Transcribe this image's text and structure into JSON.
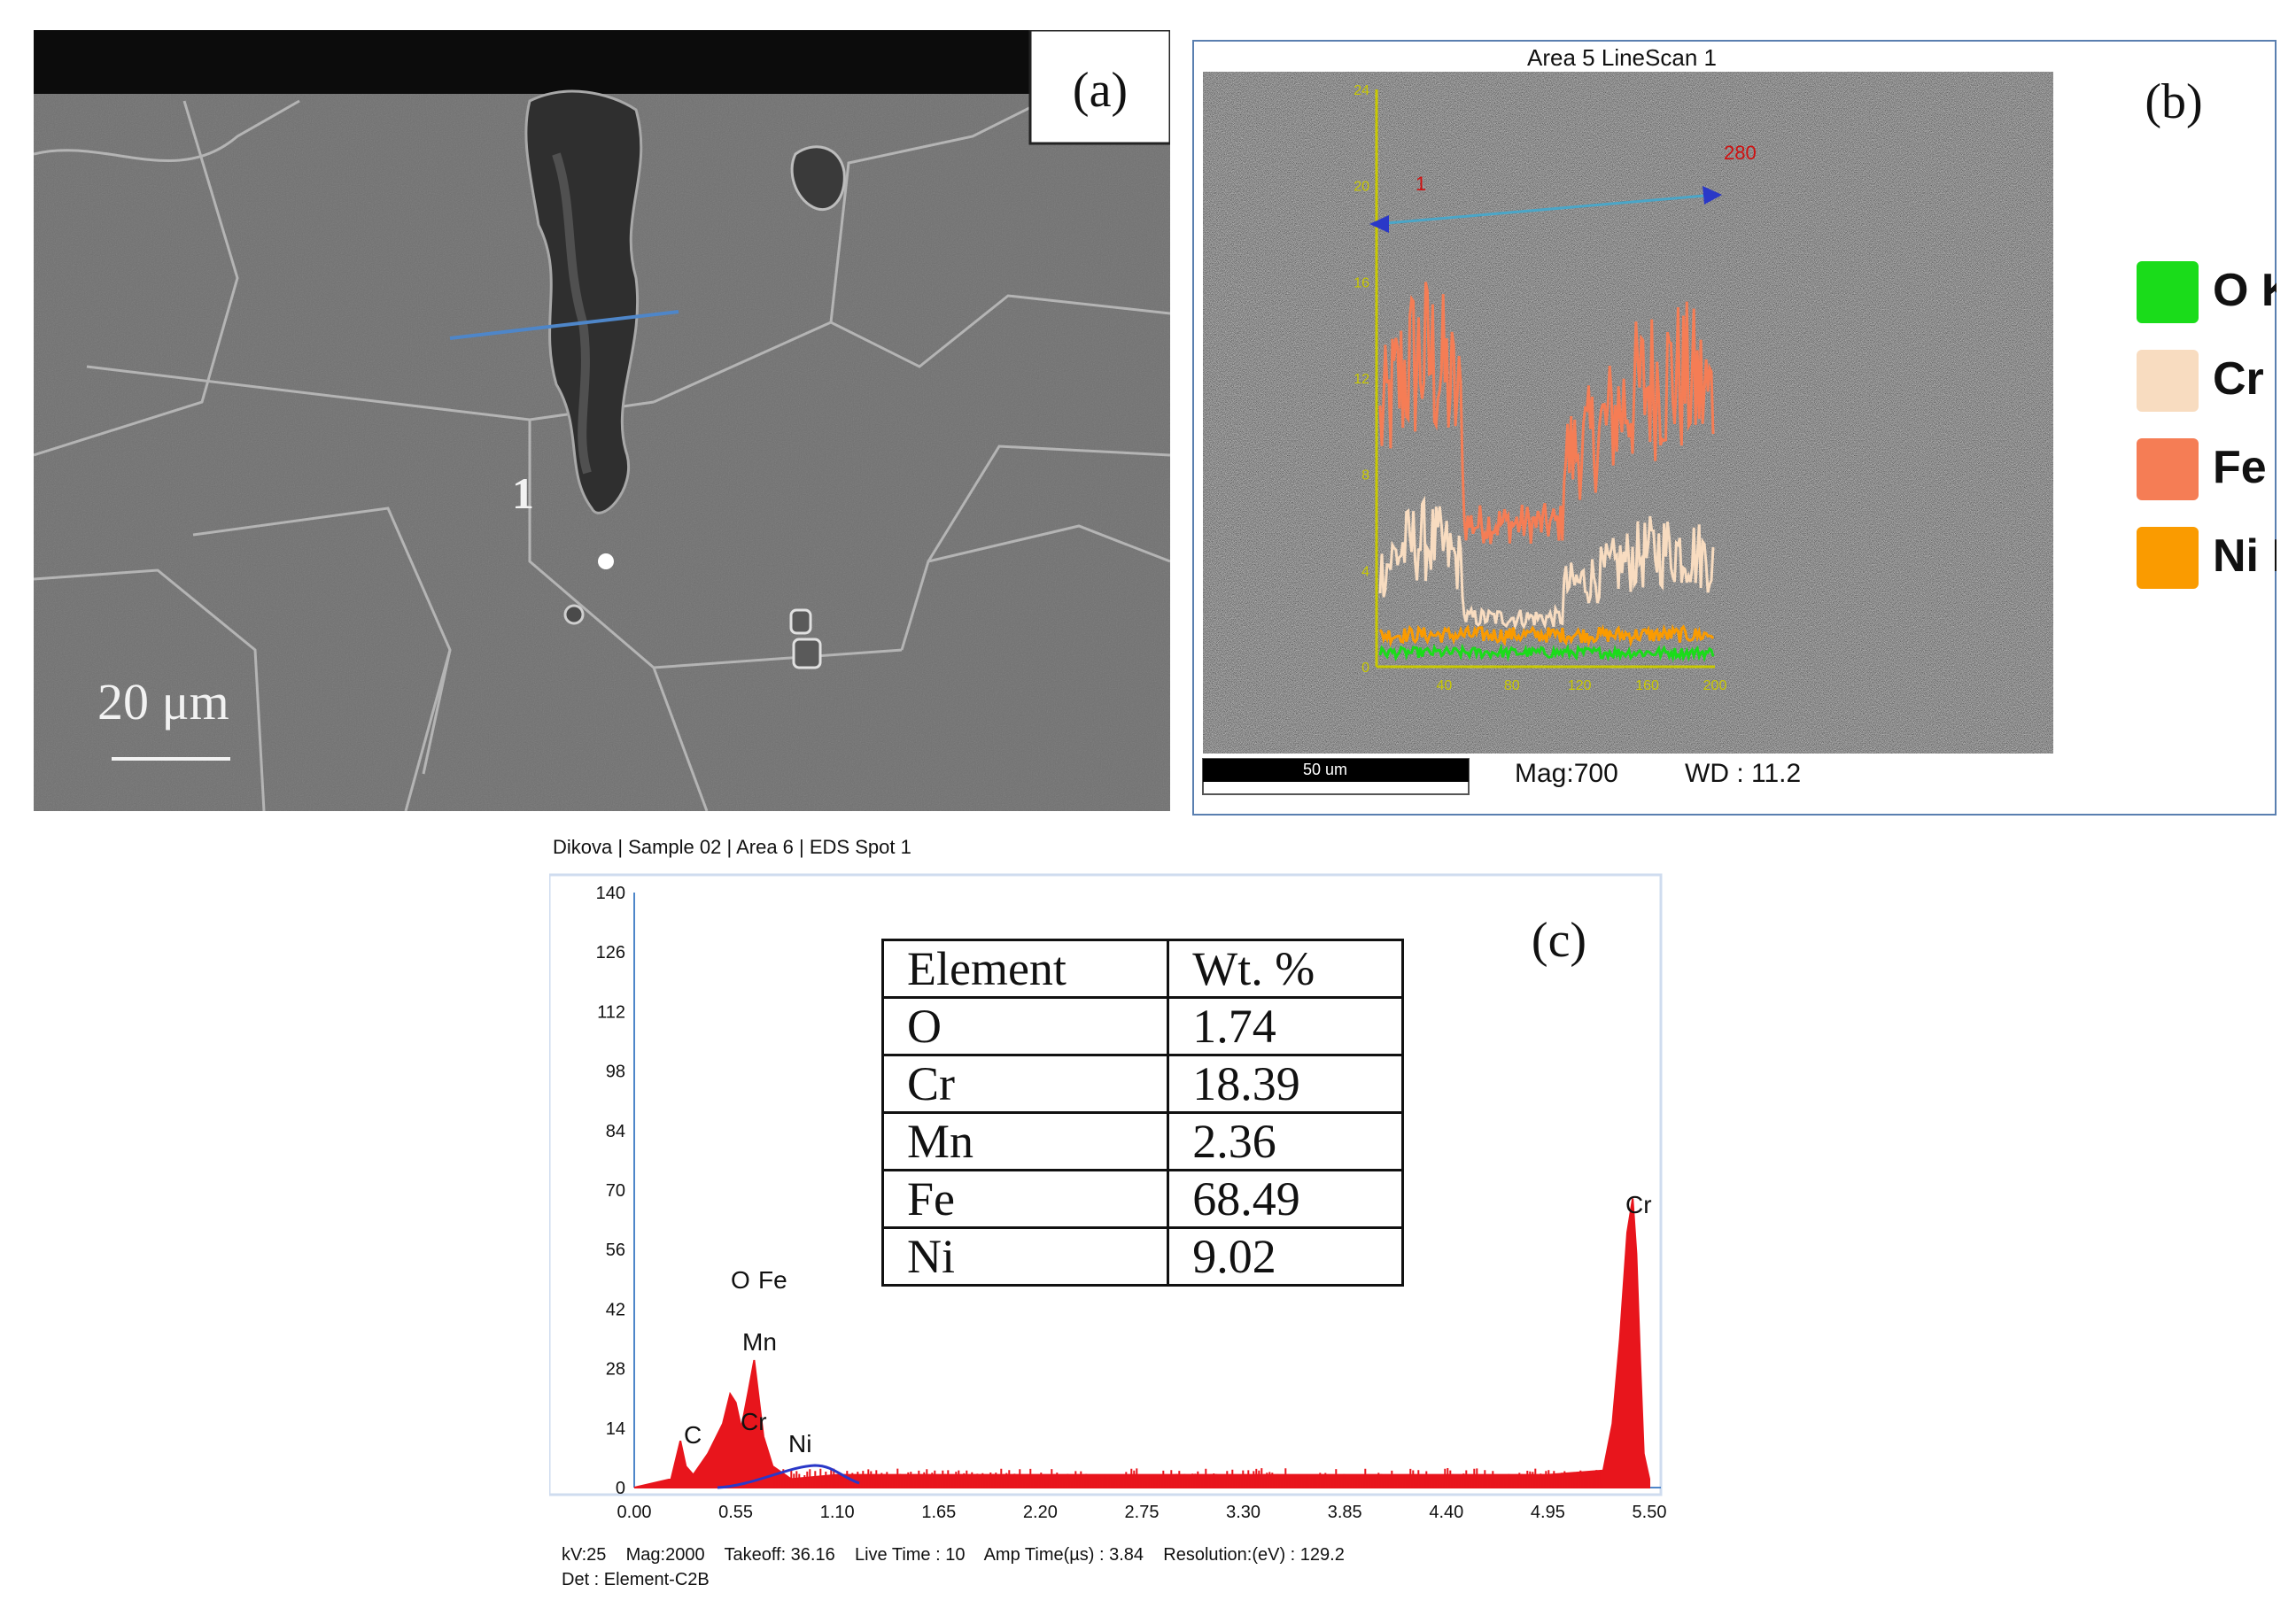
{
  "panel_a": {
    "label": "(a)",
    "point_label": "1",
    "scale_bar": "20 μm"
  },
  "panel_b": {
    "label": "(b)",
    "title": "Area 5 LineScan 1",
    "scale_bar": "50 um",
    "mag": "Mag:700",
    "wd": "WD : 11.2",
    "y_ticks": [
      "0",
      "4",
      "8",
      "12",
      "16",
      "20",
      "24"
    ],
    "x_ticks": [
      "40",
      "80",
      "120",
      "160",
      "200"
    ],
    "legend": [
      {
        "label": "O K",
        "color": "#1adc1a"
      },
      {
        "label": "Cr K",
        "color": "#f8dcc0"
      },
      {
        "label": "Fe K",
        "color": "#f57d55"
      },
      {
        "label": "Ni K",
        "color": "#fa9b00"
      }
    ],
    "colors": {
      "axis": "#c8c800",
      "scan_line": "#4aa6c8",
      "border": "#5a7fb0"
    }
  },
  "panel_c": {
    "label": "(c)",
    "header": "Dikova | Sample 02 | Area 6 | EDS Spot 1",
    "footer_line1": "kV:25    Mag:2000    Takeoff: 36.16    Live Time : 10    Amp Time(µs) : 3.84    Resolution:(eV) : 129.2",
    "footer_line2": "Det : Element-C2B",
    "peak_labels": [
      "C",
      "Cr",
      "Mn",
      "O",
      "Fe",
      "Ni",
      "Cr"
    ],
    "table": {
      "headers": [
        "Element",
        "Wt. %"
      ],
      "rows": [
        [
          "O",
          "1.74"
        ],
        [
          "Cr",
          "18.39"
        ],
        [
          "Mn",
          "2.36"
        ],
        [
          "Fe",
          "68.49"
        ],
        [
          "Ni",
          "9.02"
        ]
      ]
    },
    "chart_data": {
      "type": "area",
      "x_ticks": [
        "0.00",
        "0.55",
        "1.10",
        "1.65",
        "2.20",
        "2.75",
        "3.30",
        "3.85",
        "4.40",
        "4.95",
        "5.50"
      ],
      "y_ticks": [
        "0",
        "14",
        "28",
        "42",
        "56",
        "70",
        "84",
        "98",
        "112",
        "126",
        "140"
      ],
      "xlim": [
        0,
        5.5
      ],
      "ylim": [
        0,
        140
      ],
      "x": [
        0.0,
        0.2,
        0.25,
        0.28,
        0.32,
        0.4,
        0.48,
        0.52,
        0.55,
        0.58,
        0.62,
        0.65,
        0.7,
        0.75,
        0.85,
        1.1,
        1.65,
        2.2,
        2.75,
        3.3,
        3.85,
        4.4,
        4.95,
        5.25,
        5.3,
        5.34,
        5.38,
        5.41,
        5.43,
        5.45,
        5.47,
        5.5
      ],
      "y": [
        0,
        2,
        11,
        5,
        3,
        8,
        15,
        22,
        20,
        14,
        23,
        30,
        12,
        5,
        2,
        3,
        3,
        3,
        3,
        3,
        3,
        3,
        3,
        4,
        15,
        35,
        60,
        68,
        55,
        30,
        8,
        2
      ],
      "series": [
        {
          "name": "",
          "color": "#e8151c"
        }
      ]
    }
  }
}
